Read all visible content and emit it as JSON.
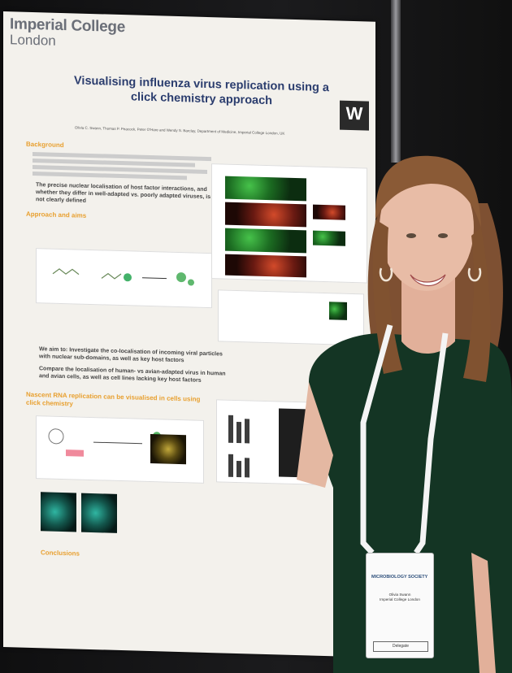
{
  "poster": {
    "institution_line1": "Imperial College",
    "institution_line2": "London",
    "title": "Visualising influenza virus replication using a click chemistry approach",
    "journal_logo": "W",
    "authors": "Olivia C. Swann, Thomas P. Peacock, Peter O'Hare and Wendy S. Barclay, Department of Medicine, Imperial College London, UK",
    "sections": {
      "background": "Background",
      "approach": "Approach and aims",
      "results": "Nascent RNA replication can be visualised in cells using click chemistry",
      "conclusions": "Conclusions"
    },
    "highlights": [
      "The precise nuclear localisation of host factor interactions, and whether they differ in well-adapted vs. poorly adapted viruses, is not clearly defined",
      "We aim to: Investigate the co-localisation of incoming viral particles with nuclear sub-domains, as well as key host factors",
      "Compare the localisation of human- vs avian-adapted virus in human and avian cells, as well as cell lines lacking key host factors"
    ]
  },
  "badge": {
    "society": "MICROBIOLOGY SOCIETY",
    "name": "Olivia Swann",
    "affiliation": "Imperial College London",
    "role": "Delegate"
  },
  "colors": {
    "poster_bg": "#f3f1ec",
    "title": "#2b3d6e",
    "section_heading": "#e8a030",
    "dress": "#143524",
    "hair": "#8a5a36"
  }
}
